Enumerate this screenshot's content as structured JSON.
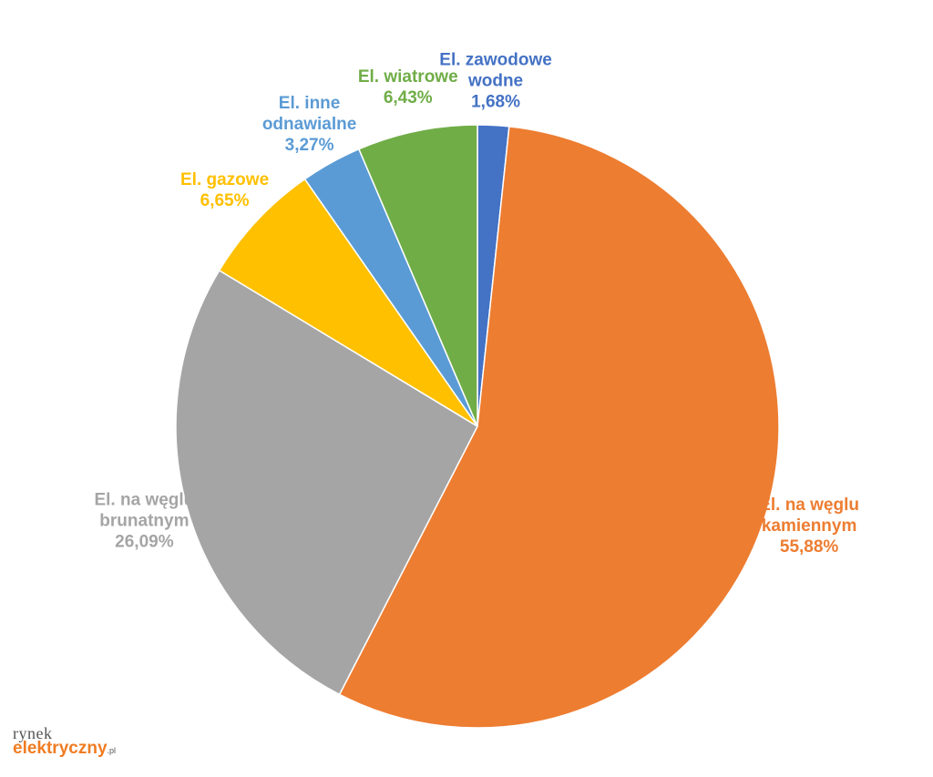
{
  "chart_data": {
    "type": "pie",
    "title": "",
    "start_angle_deg": 0,
    "direction": "clockwise",
    "slices": [
      {
        "name": [
          "El. zawodowe",
          "wodne"
        ],
        "value": 1.68,
        "label": "1,68%",
        "color": "#4472c4"
      },
      {
        "name": [
          "El. na węglu",
          "kamiennym"
        ],
        "value": 55.88,
        "label": "55,88%",
        "color": "#ed7d31"
      },
      {
        "name": [
          "El. na węglu",
          "brunatnym"
        ],
        "value": 26.09,
        "label": "26,09%",
        "color": "#a5a5a5"
      },
      {
        "name": [
          "El. gazowe"
        ],
        "value": 6.65,
        "label": "6,65%",
        "color": "#ffc000"
      },
      {
        "name": [
          "El. inne",
          "odnawialne"
        ],
        "value": 3.27,
        "label": "3,27%",
        "color": "#5b9bd5"
      },
      {
        "name": [
          "El. wiatrowe"
        ],
        "value": 6.43,
        "label": "6,43%",
        "color": "#70ad47"
      }
    ]
  },
  "logo": {
    "line1": "rynek",
    "line2": "elektryczny",
    "suffix": ".pl"
  }
}
